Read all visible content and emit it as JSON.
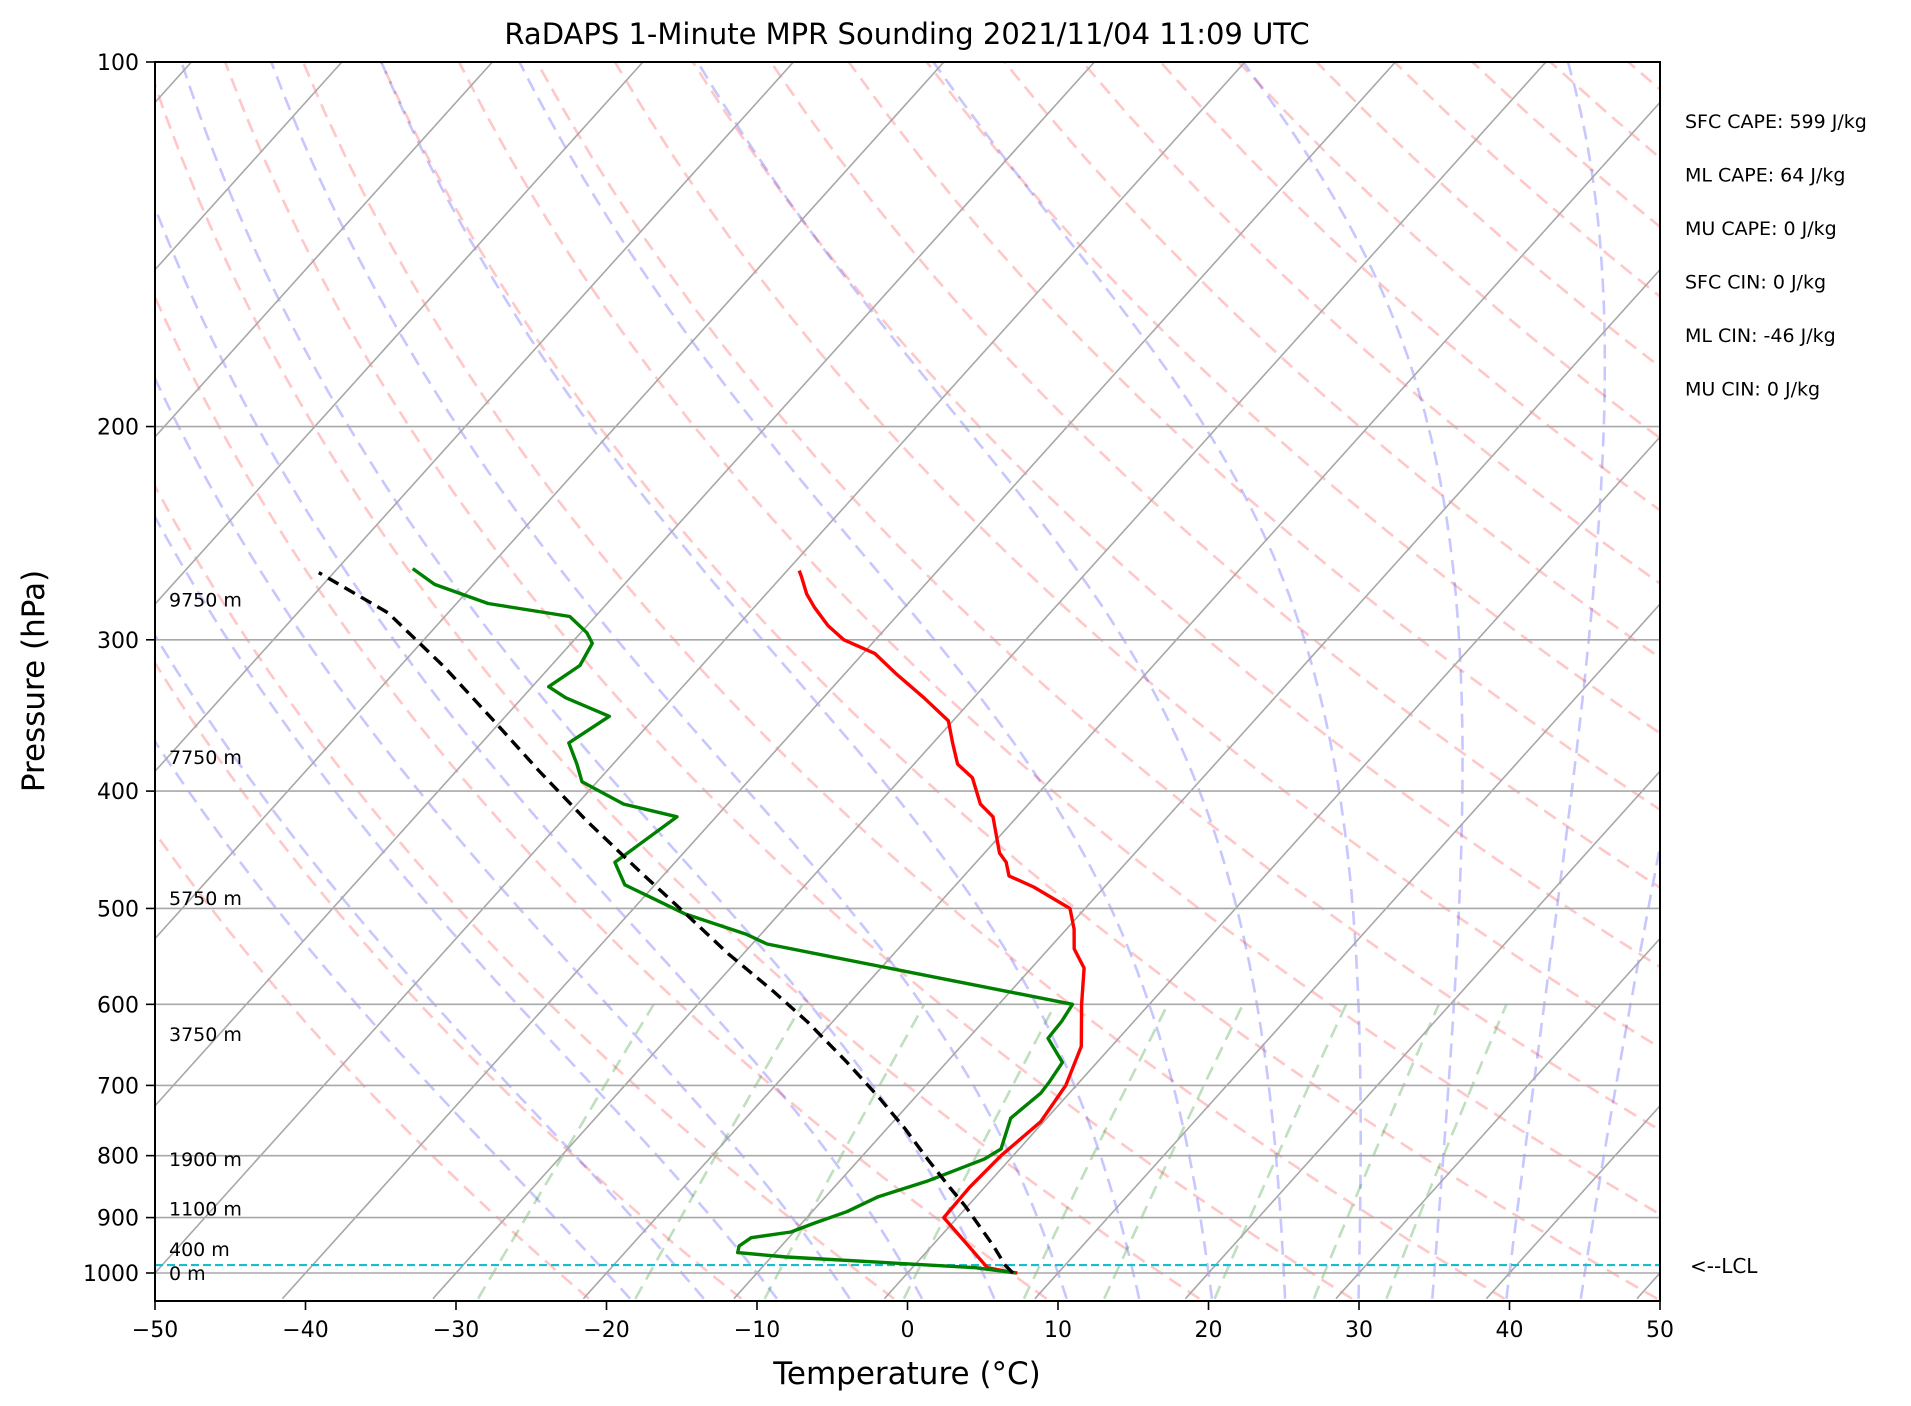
{
  "chart_data": {
    "type": "skew-t",
    "title": "RaDAPS 1-Minute MPR Sounding 2021/11/04 11:09 UTC",
    "xlabel": "Temperature (°C)",
    "ylabel": "Pressure (hPa)",
    "xlim": [
      -50,
      50
    ],
    "ylim": [
      1050,
      100
    ],
    "y_scale": "log",
    "x_ticks": [
      "−50",
      "−40",
      "−30",
      "−20",
      "−10",
      "0",
      "10",
      "20",
      "30",
      "40",
      "50"
    ],
    "x_tick_values": [
      -50,
      -40,
      -30,
      -20,
      -10,
      0,
      10,
      20,
      30,
      40,
      50
    ],
    "y_ticks": [
      "100",
      "200",
      "300",
      "400",
      "500",
      "600",
      "700",
      "800",
      "900",
      "1000"
    ],
    "y_tick_values": [
      100,
      200,
      300,
      400,
      500,
      600,
      700,
      800,
      900,
      1000
    ],
    "isobar_grid": true,
    "height_labels": [
      {
        "label": "0 m",
        "p": 1000
      },
      {
        "label": "400 m",
        "p": 955
      },
      {
        "label": "1100 m",
        "p": 885
      },
      {
        "label": "1900 m",
        "p": 805
      },
      {
        "label": "3750 m",
        "p": 635
      },
      {
        "label": "5750 m",
        "p": 490
      },
      {
        "label": "7750 m",
        "p": 375
      },
      {
        "label": "9750 m",
        "p": 278
      }
    ],
    "indices": [
      "SFC CAPE: 599 J/kg",
      "ML CAPE: 64 J/kg",
      "MU CAPE: 0 J/kg",
      "SFC CIN: 0 J/kg",
      "ML CIN: -46 J/kg",
      "MU CIN: 0 J/kg"
    ],
    "lcl": {
      "label": "<--LCL",
      "p": 985
    },
    "series": [
      {
        "key": "temperature",
        "color": "#ff0000",
        "points": [
          [
            7.3,
            1000
          ],
          [
            6.5,
            997
          ],
          [
            5.0,
            990
          ],
          [
            -0.9,
            900
          ],
          [
            -1.0,
            850
          ],
          [
            -0.8,
            800
          ],
          [
            -0.2,
            750
          ],
          [
            -0.7,
            700
          ],
          [
            -2.0,
            650
          ],
          [
            -4.5,
            600
          ],
          [
            -6.5,
            560
          ],
          [
            -8.3,
            540
          ],
          [
            -9.5,
            520
          ],
          [
            -11.0,
            500
          ],
          [
            -14.7,
            480
          ],
          [
            -17.0,
            470
          ],
          [
            -18.0,
            458
          ],
          [
            -19.0,
            450
          ],
          [
            -21.6,
            420
          ],
          [
            -23.2,
            410
          ],
          [
            -25.3,
            390
          ],
          [
            -27.1,
            380
          ],
          [
            -28.7,
            365
          ],
          [
            -30.3,
            350
          ],
          [
            -33.3,
            335
          ],
          [
            -36.6,
            320
          ],
          [
            -39.2,
            308
          ],
          [
            -42.1,
            300
          ],
          [
            -44.0,
            292
          ],
          [
            -46.0,
            282
          ],
          [
            -47.3,
            275
          ],
          [
            -48.7,
            266
          ],
          [
            -49.2,
            263
          ]
        ]
      },
      {
        "key": "dewpoint",
        "color": "#008000",
        "points": [
          [
            7.2,
            1000
          ],
          [
            4.2,
            990
          ],
          [
            -9.0,
            970
          ],
          [
            -12.5,
            962
          ],
          [
            -12.8,
            950
          ],
          [
            -12.5,
            935
          ],
          [
            -10.2,
            925
          ],
          [
            -9.2,
            910
          ],
          [
            -7.7,
            890
          ],
          [
            -6.5,
            865
          ],
          [
            -4.2,
            840
          ],
          [
            -1.7,
            805
          ],
          [
            -1.2,
            790
          ],
          [
            -2.4,
            745
          ],
          [
            -1.9,
            710
          ],
          [
            -2.0,
            695
          ],
          [
            -2.3,
            670
          ],
          [
            -4.7,
            640
          ],
          [
            -4.8,
            620
          ],
          [
            -5.1,
            600
          ],
          [
            -24.0,
            548
          ],
          [
            -29.0,
            535
          ],
          [
            -31.0,
            525
          ],
          [
            -36.3,
            505
          ],
          [
            -42.0,
            478
          ],
          [
            -44.0,
            458
          ],
          [
            -42.6,
            420
          ],
          [
            -46.9,
            410
          ],
          [
            -51.0,
            393
          ],
          [
            -52.4,
            380
          ],
          [
            -54.2,
            365
          ],
          [
            -53.1,
            347
          ],
          [
            -57.1,
            335
          ],
          [
            -58.9,
            328
          ],
          [
            -58.1,
            315
          ],
          [
            -58.6,
            302
          ],
          [
            -59.6,
            296
          ],
          [
            -61.7,
            287
          ],
          [
            -67.9,
            280
          ],
          [
            -72.6,
            270
          ],
          [
            -75.0,
            262
          ]
        ]
      },
      {
        "key": "parcel",
        "color": "#000000",
        "dashed": true,
        "points": [
          [
            7.0,
            1000
          ],
          [
            6.0,
            985
          ],
          [
            4.1,
            950
          ],
          [
            2.0,
            915
          ],
          [
            -0.2,
            880
          ],
          [
            -2.3,
            850
          ],
          [
            -5.5,
            805
          ],
          [
            -8.8,
            760
          ],
          [
            -12.5,
            715
          ],
          [
            -16.8,
            668
          ],
          [
            -21.7,
            620
          ],
          [
            -25.8,
            585
          ],
          [
            -31.0,
            545
          ],
          [
            -36.5,
            503
          ],
          [
            -41.8,
            466
          ],
          [
            -48.4,
            423
          ],
          [
            -54.5,
            385
          ],
          [
            -60.5,
            350
          ],
          [
            -67.0,
            316
          ],
          [
            -74.0,
            285
          ],
          [
            -81.0,
            264
          ]
        ]
      }
    ]
  }
}
